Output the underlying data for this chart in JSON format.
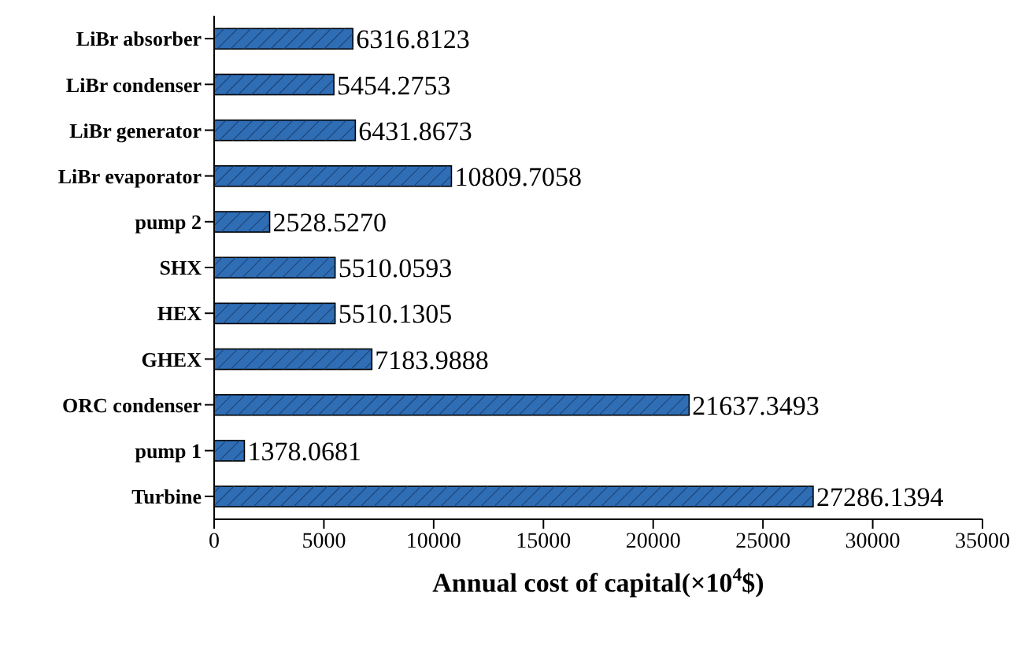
{
  "chart_data": {
    "type": "bar",
    "orientation": "horizontal",
    "xlabel": "Annual cost of capital(×10$^{4}$$)",
    "categories": [
      "LiBr absorber",
      "LiBr condenser",
      "LiBr generator",
      "LiBr evaporator",
      "pump 2",
      "SHX",
      "HEX",
      "GHEX",
      "ORC condenser",
      "pump 1",
      "Turbine"
    ],
    "values": [
      6316.8123,
      5454.2753,
      6431.8673,
      10809.7058,
      2528.527,
      5510.0593,
      5510.1305,
      7183.9888,
      21637.3493,
      1378.0681,
      27286.1394
    ],
    "value_labels": [
      "6316.8123",
      "5454.2753",
      "6431.8673",
      "10809.7058",
      "2528.5270",
      "5510.0593",
      "5510.1305",
      "7183.9888",
      "21637.3493",
      "1378.0681",
      "27286.1394"
    ],
    "color": "#2f6db5",
    "xlim": [
      0,
      35000
    ],
    "xticks": [
      0,
      5000,
      10000,
      15000,
      20000,
      25000,
      30000,
      35000
    ],
    "grid": false,
    "legend": false
  }
}
